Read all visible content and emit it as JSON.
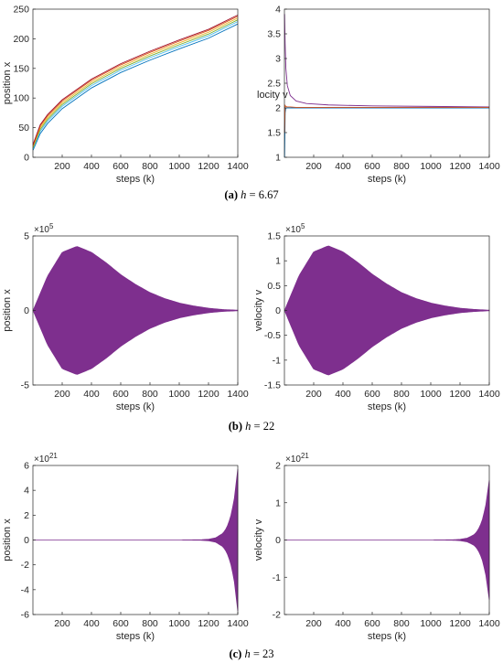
{
  "captions": [
    {
      "label": "(a)",
      "var": "h",
      "eq": " = ",
      "val": "6.67"
    },
    {
      "label": "(b)",
      "var": "h",
      "eq": " = ",
      "val": "22"
    },
    {
      "label": "(c)",
      "var": "h",
      "eq": " = ",
      "val": "23"
    }
  ],
  "colors": {
    "axis": "#262626",
    "envelope": "#7e2f8e",
    "lines": [
      "#0072bd",
      "#4dbeee",
      "#77ac30",
      "#edb120",
      "#d95319",
      "#a2142f"
    ],
    "velocity_top": "#7e2f8e"
  },
  "chart_data": [
    {
      "type": "line",
      "panel": "a-left",
      "xlabel": "steps (k)",
      "ylabel": "position x",
      "xlim": [
        0,
        1400
      ],
      "ylim": [
        0,
        250
      ],
      "xticks": [
        200,
        400,
        600,
        800,
        1000,
        1200,
        1400
      ],
      "yticks": [
        0,
        50,
        100,
        150,
        200,
        250
      ],
      "exponent": "",
      "series": [
        {
          "x": [
            1,
            50,
            100,
            200,
            400,
            600,
            800,
            1000,
            1200,
            1400
          ],
          "values": [
            12,
            40,
            57,
            82,
            117,
            143,
            164,
            183,
            201,
            225
          ]
        },
        {
          "x": [
            1,
            50,
            100,
            200,
            400,
            600,
            800,
            1000,
            1200,
            1400
          ],
          "values": [
            14,
            44,
            61,
            86,
            121,
            147,
            168,
            187,
            205,
            229
          ]
        },
        {
          "x": [
            1,
            50,
            100,
            200,
            400,
            600,
            800,
            1000,
            1200,
            1400
          ],
          "values": [
            16,
            47,
            64,
            89,
            124,
            150,
            171,
            190,
            208,
            232
          ]
        },
        {
          "x": [
            1,
            50,
            100,
            200,
            400,
            600,
            800,
            1000,
            1200,
            1400
          ],
          "values": [
            18,
            50,
            67,
            92,
            127,
            153,
            174,
            193,
            211,
            235
          ]
        },
        {
          "x": [
            1,
            50,
            100,
            200,
            400,
            600,
            800,
            1000,
            1200,
            1400
          ],
          "values": [
            20,
            53,
            70,
            95,
            130,
            156,
            177,
            196,
            214,
            238
          ]
        },
        {
          "x": [
            1,
            50,
            100,
            200,
            400,
            600,
            800,
            1000,
            1200,
            1400
          ],
          "values": [
            22,
            55,
            72,
            97,
            132,
            158,
            179,
            198,
            216,
            240
          ]
        }
      ]
    },
    {
      "type": "line",
      "panel": "a-right",
      "xlabel": "steps (k)",
      "ylabel": "locity v",
      "xlim": [
        0,
        1400
      ],
      "ylim": [
        1,
        4
      ],
      "xticks": [
        200,
        400,
        600,
        800,
        1000,
        1200,
        1400
      ],
      "yticks": [
        1,
        1.5,
        2,
        2.5,
        3,
        3.5,
        4
      ],
      "exponent": "",
      "series": [
        {
          "x": [
            1,
            5,
            10,
            20,
            40,
            80,
            150,
            300,
            600,
            1000,
            1400
          ],
          "values": [
            3.9,
            3.3,
            2.8,
            2.45,
            2.25,
            2.14,
            2.09,
            2.06,
            2.04,
            2.03,
            2.02
          ]
        },
        {
          "x": [
            1,
            5,
            10,
            20,
            40,
            80,
            150,
            300,
            600,
            1000,
            1400
          ],
          "values": [
            1.0,
            1.9,
            2.0,
            2.0,
            2.0,
            2.0,
            2.0,
            2.0,
            2.0,
            2.0,
            2.0
          ]
        },
        {
          "x": [
            1,
            5,
            10,
            20,
            40,
            80,
            150,
            300,
            600,
            1000,
            1400
          ],
          "values": [
            1.5,
            2.05,
            2.03,
            2.02,
            2.02,
            2.01,
            2.01,
            2.01,
            2.01,
            2.01,
            2.01
          ]
        }
      ]
    },
    {
      "type": "area",
      "panel": "b-left",
      "xlabel": "steps (k)",
      "ylabel": "position x",
      "xlim": [
        0,
        1400
      ],
      "ylim": [
        -5,
        5
      ],
      "xticks": [
        200,
        400,
        600,
        800,
        1000,
        1200,
        1400
      ],
      "yticks": [
        -5,
        0,
        5
      ],
      "exponent": "10^5",
      "envelope": {
        "x": [
          1,
          100,
          200,
          300,
          400,
          500,
          600,
          700,
          800,
          900,
          1000,
          1100,
          1200,
          1300,
          1400
        ],
        "upper": [
          0,
          2.3,
          3.9,
          4.3,
          3.9,
          3.2,
          2.4,
          1.75,
          1.2,
          0.8,
          0.5,
          0.3,
          0.15,
          0.06,
          0.02
        ]
      }
    },
    {
      "type": "area",
      "panel": "b-right",
      "xlabel": "steps (k)",
      "ylabel": "velocity v",
      "xlim": [
        0,
        1400
      ],
      "ylim": [
        -1.5,
        1.5
      ],
      "xticks": [
        200,
        400,
        600,
        800,
        1000,
        1200,
        1400
      ],
      "yticks": [
        -1.5,
        -1,
        -0.5,
        0,
        0.5,
        1,
        1.5
      ],
      "exponent": "10^5",
      "envelope": {
        "x": [
          1,
          100,
          200,
          300,
          400,
          500,
          600,
          700,
          800,
          900,
          1000,
          1100,
          1200,
          1300,
          1400
        ],
        "upper": [
          0,
          0.7,
          1.18,
          1.3,
          1.18,
          0.97,
          0.73,
          0.53,
          0.36,
          0.24,
          0.15,
          0.09,
          0.045,
          0.02,
          0.006
        ]
      }
    },
    {
      "type": "area",
      "panel": "c-left",
      "xlabel": "steps (k)",
      "ylabel": "position x",
      "xlim": [
        0,
        1400
      ],
      "ylim": [
        -6,
        6
      ],
      "xticks": [
        200,
        400,
        600,
        800,
        1000,
        1200,
        1400
      ],
      "yticks": [
        -6,
        -4,
        -2,
        0,
        2,
        4,
        6
      ],
      "exponent": "10^21",
      "envelope": {
        "x": [
          1,
          1000,
          1150,
          1200,
          1250,
          1300,
          1325,
          1350,
          1375,
          1400
        ],
        "upper": [
          0,
          0,
          0.02,
          0.06,
          0.18,
          0.55,
          1.0,
          1.8,
          3.2,
          5.7
        ]
      }
    },
    {
      "type": "area",
      "panel": "c-right",
      "xlabel": "steps (k)",
      "ylabel": "velocity v",
      "xlim": [
        0,
        1400
      ],
      "ylim": [
        -2,
        2
      ],
      "xticks": [
        200,
        400,
        600,
        800,
        1000,
        1200,
        1400
      ],
      "yticks": [
        -2,
        -1,
        0,
        1,
        2
      ],
      "exponent": "10^21",
      "envelope": {
        "x": [
          1,
          1000,
          1150,
          1200,
          1250,
          1300,
          1325,
          1350,
          1375,
          1400
        ],
        "upper": [
          0,
          0,
          0.006,
          0.018,
          0.05,
          0.15,
          0.28,
          0.5,
          0.9,
          1.6
        ]
      }
    }
  ]
}
